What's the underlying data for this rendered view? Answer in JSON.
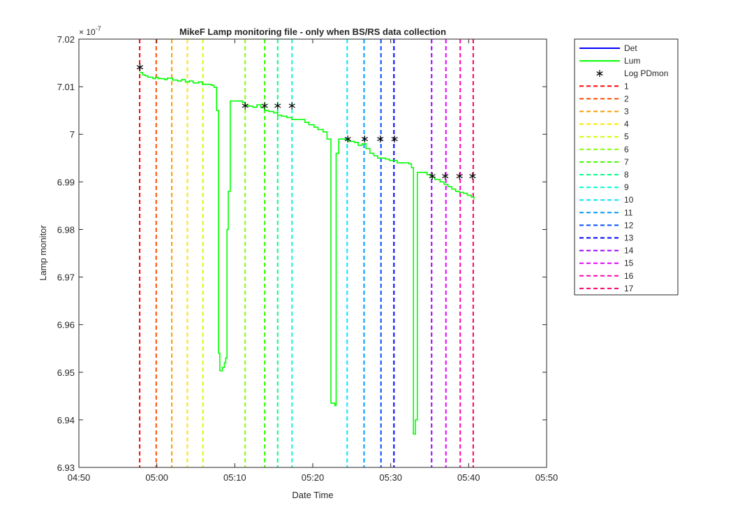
{
  "chart_data": {
    "type": "line",
    "title": "MikeF Lamp monitoring file - only when BS/RS data collection",
    "xlabel": "Date Time",
    "ylabel": "Lamp monitor",
    "y_exponent_label": "× 10",
    "y_exponent_power": "-7",
    "grid": false,
    "legend_position": "outside-right",
    "xlim": [
      "04:50",
      "05:50"
    ],
    "ylim": [
      6.93,
      7.02
    ],
    "x_ticks": [
      {
        "t": "04:50",
        "label": "04:50"
      },
      {
        "t": "05:00",
        "label": "05:00"
      },
      {
        "t": "05:10",
        "label": "05:10"
      },
      {
        "t": "05:20",
        "label": "05:20"
      },
      {
        "t": "05:30",
        "label": "05:30"
      },
      {
        "t": "05:40",
        "label": "05:40"
      },
      {
        "t": "05:50",
        "label": "05:50"
      }
    ],
    "y_ticks": [
      {
        "v": 6.93,
        "label": "6.93"
      },
      {
        "v": 6.94,
        "label": "6.94"
      },
      {
        "v": 6.95,
        "label": "6.95"
      },
      {
        "v": 6.96,
        "label": "6.96"
      },
      {
        "v": 6.97,
        "label": "6.97"
      },
      {
        "v": 6.98,
        "label": "6.98"
      },
      {
        "v": 6.99,
        "label": "6.99"
      },
      {
        "v": 7.0,
        "label": "7"
      },
      {
        "v": 7.01,
        "label": "7.01"
      },
      {
        "v": 7.02,
        "label": "7.02"
      }
    ],
    "series": [
      {
        "name": "Det",
        "color": "#0000ff",
        "x": [],
        "y": []
      },
      {
        "name": "Lum",
        "color": "#00ff00",
        "x": [
          "04:57:48",
          "04:58:10",
          "04:58:30",
          "04:58:50",
          "04:59:30",
          "04:59:50",
          "05:00:10",
          "05:00:40",
          "05:01:00",
          "05:01:20",
          "05:02:00",
          "05:02:40",
          "05:03:10",
          "05:03:40",
          "05:04:10",
          "05:04:40",
          "05:05:20",
          "05:05:50",
          "05:06:30",
          "05:07:00",
          "05:07:20",
          "05:07:40",
          "05:07:55",
          "05:08:05",
          "05:08:25",
          "05:08:40",
          "05:08:50",
          "05:09:00",
          "05:09:10",
          "05:09:25",
          "05:09:40",
          "05:10:30",
          "05:11:00",
          "05:11:20",
          "05:11:50",
          "05:12:20",
          "05:12:50",
          "05:13:20",
          "05:13:50",
          "05:14:20",
          "05:15:00",
          "05:15:30",
          "05:16:00",
          "05:16:40",
          "05:17:20",
          "05:18:00",
          "05:18:30",
          "05:19:00",
          "05:19:30",
          "05:20:10",
          "05:20:40",
          "05:21:20",
          "05:21:50",
          "05:22:05",
          "05:22:20",
          "05:22:50",
          "05:23:00",
          "05:23:20",
          "05:23:40",
          "05:24:10",
          "05:24:40",
          "05:25:20",
          "05:25:50",
          "05:26:20",
          "05:26:50",
          "05:27:20",
          "05:27:50",
          "05:28:20",
          "05:28:50",
          "05:29:20",
          "05:29:50",
          "05:30:20",
          "05:30:50",
          "05:31:20",
          "05:31:50",
          "05:32:20",
          "05:32:40",
          "05:32:55",
          "05:33:10",
          "05:33:25",
          "05:33:40",
          "05:34:00",
          "05:34:40",
          "05:35:10",
          "05:35:40",
          "05:36:20",
          "05:36:50",
          "05:37:20",
          "05:37:50",
          "05:38:20",
          "05:38:50",
          "05:39:20",
          "05:39:50",
          "05:40:20",
          "05:40:40"
        ],
        "y": [
          7.013,
          7.0125,
          7.0123,
          7.012,
          7.0117,
          7.012,
          7.0117,
          7.0117,
          7.0115,
          7.0118,
          7.0114,
          7.0112,
          7.0115,
          7.011,
          7.0112,
          7.0108,
          7.011,
          7.0105,
          7.0105,
          7.0103,
          7.0099,
          7.005,
          6.954,
          6.9503,
          6.951,
          6.952,
          6.953,
          6.98,
          6.988,
          7.007,
          7.007,
          7.007,
          7.0067,
          7.006,
          7.0059,
          7.0057,
          7.0062,
          7.0056,
          7.005,
          7.0048,
          7.0045,
          7.004,
          7.0038,
          7.0035,
          7.0031,
          7.0031,
          7.0031,
          7.0025,
          7.002,
          7.0015,
          7.001,
          7.0005,
          6.999,
          6.999,
          6.9435,
          6.943,
          6.996,
          6.999,
          6.999,
          6.999,
          6.9985,
          6.9983,
          6.9977,
          6.998,
          6.997,
          6.996,
          6.9955,
          6.995,
          6.995,
          6.9948,
          6.9945,
          6.9945,
          6.994,
          6.994,
          6.994,
          6.9938,
          6.993,
          6.937,
          6.94,
          6.992,
          6.992,
          6.992,
          6.9915,
          6.991,
          6.9905,
          6.99,
          6.9895,
          6.989,
          6.9885,
          6.988,
          6.9878,
          6.9876,
          6.9872,
          6.9868,
          6.9863
        ]
      },
      {
        "name": "Log PDmon",
        "color": "#000000",
        "x": [
          "04:57:50",
          "05:11:20",
          "05:13:50",
          "05:15:30",
          "05:17:20",
          "05:24:30",
          "05:26:40",
          "05:28:40",
          "05:30:30",
          "05:35:20",
          "05:37:00",
          "05:38:50",
          "05:40:30"
        ],
        "y": [
          7.0141,
          7.006,
          7.006,
          7.006,
          7.006,
          6.999,
          6.999,
          6.999,
          6.999,
          6.9912,
          6.9912,
          6.9912,
          6.9912
        ]
      }
    ],
    "vlines": [
      {
        "name": "1",
        "t": "04:57:48",
        "color": "#ff0000"
      },
      {
        "name": "2",
        "t": "04:59:55",
        "color": "#ff4d00"
      },
      {
        "name": "3",
        "t": "05:01:55",
        "color": "#ff9900"
      },
      {
        "name": "4",
        "t": "05:03:55",
        "color": "#ffe600"
      },
      {
        "name": "5",
        "t": "05:05:55",
        "color": "#ccff00"
      },
      {
        "name": "6",
        "t": "05:11:20",
        "color": "#80ff00"
      },
      {
        "name": "7",
        "t": "05:13:50",
        "color": "#33ff00"
      },
      {
        "name": "8",
        "t": "05:15:30",
        "color": "#00ff80"
      },
      {
        "name": "9",
        "t": "05:17:20",
        "color": "#00ffcc"
      },
      {
        "name": "10",
        "t": "05:24:25",
        "color": "#00e6ff"
      },
      {
        "name": "11",
        "t": "05:26:35",
        "color": "#0099ff"
      },
      {
        "name": "12",
        "t": "05:28:45",
        "color": "#004dff"
      },
      {
        "name": "13",
        "t": "05:30:25",
        "color": "#0000ff"
      },
      {
        "name": "14",
        "t": "05:35:15",
        "color": "#9900ff"
      },
      {
        "name": "15",
        "t": "05:37:05",
        "color": "#e600ff"
      },
      {
        "name": "16",
        "t": "05:38:55",
        "color": "#ff00b3"
      },
      {
        "name": "17",
        "t": "05:40:35",
        "color": "#ff0066"
      }
    ]
  }
}
